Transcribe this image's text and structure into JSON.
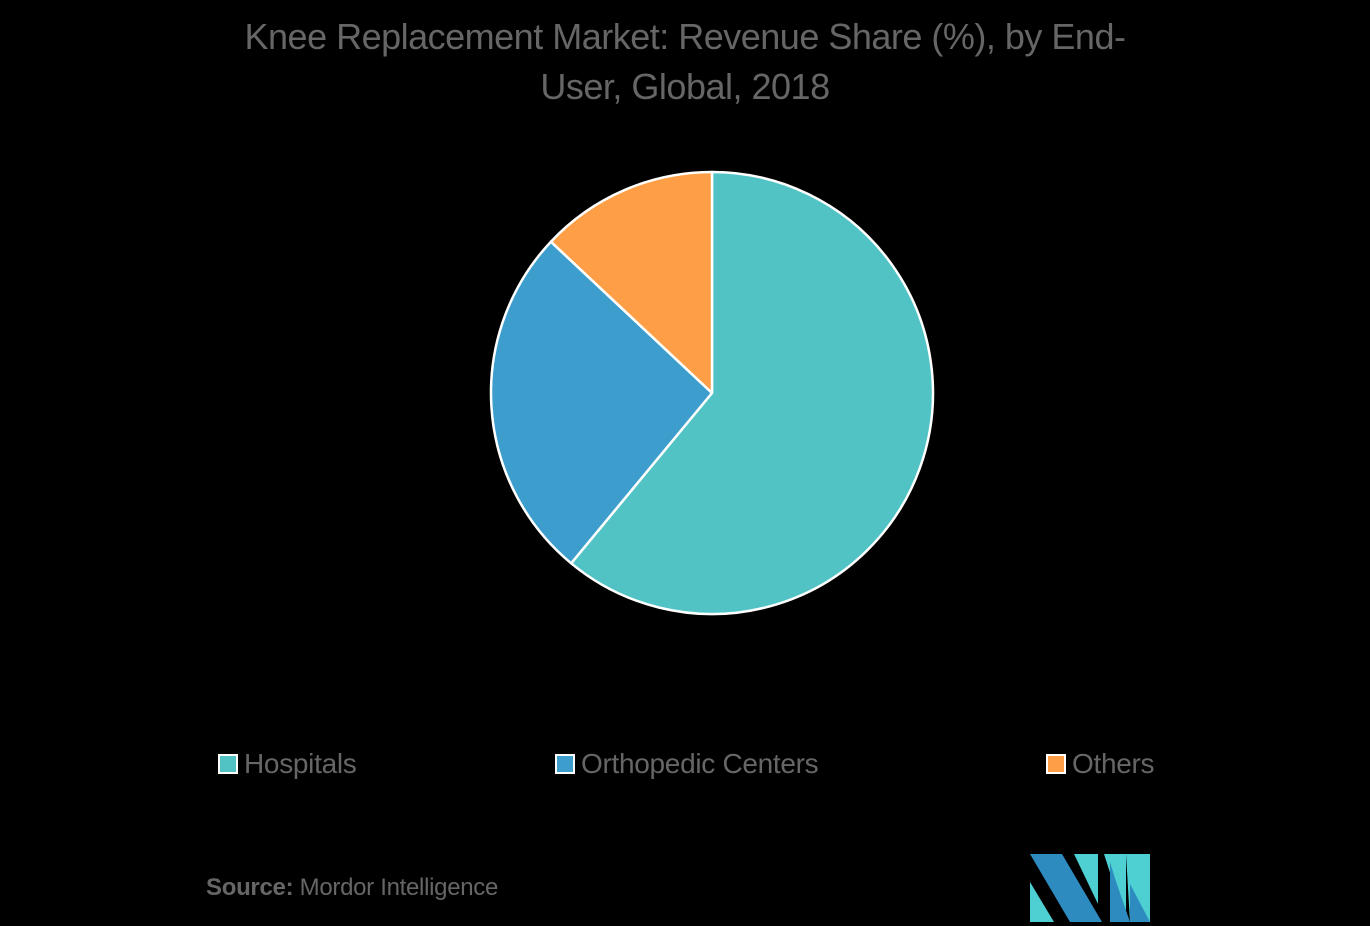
{
  "title": "Knee Replacement Market: Revenue Share (%), by End-User, Global, 2018",
  "title_lines": [
    "Knee Replacement Market: Revenue Share (%), by End-",
    "User, Global, 2018"
  ],
  "legend": [
    {
      "label": "Hospitals",
      "color": "#52C3C5"
    },
    {
      "label": "Orthopedic Centers",
      "color": "#3D9DCD"
    },
    {
      "label": "Others",
      "color": "#FE9F47"
    }
  ],
  "source": {
    "prefix": "Source:",
    "text": "Mordor Intelligence"
  },
  "logo": {
    "name": "mordor-intelligence-logo",
    "colors": [
      "#2E8BC0",
      "#4ECFD2"
    ]
  },
  "chart_data": {
    "type": "pie",
    "title": "Knee Replacement Market: Revenue Share (%), by End-User, Global, 2018",
    "categories": [
      "Hospitals",
      "Orthopedic Centers",
      "Others"
    ],
    "values": [
      61,
      26,
      13
    ],
    "unit": "%",
    "colors": [
      "#52C3C5",
      "#3D9DCD",
      "#FE9F47"
    ],
    "start_angle": "12 o'clock, clockwise",
    "legend_position": "bottom",
    "data_labels": false
  }
}
